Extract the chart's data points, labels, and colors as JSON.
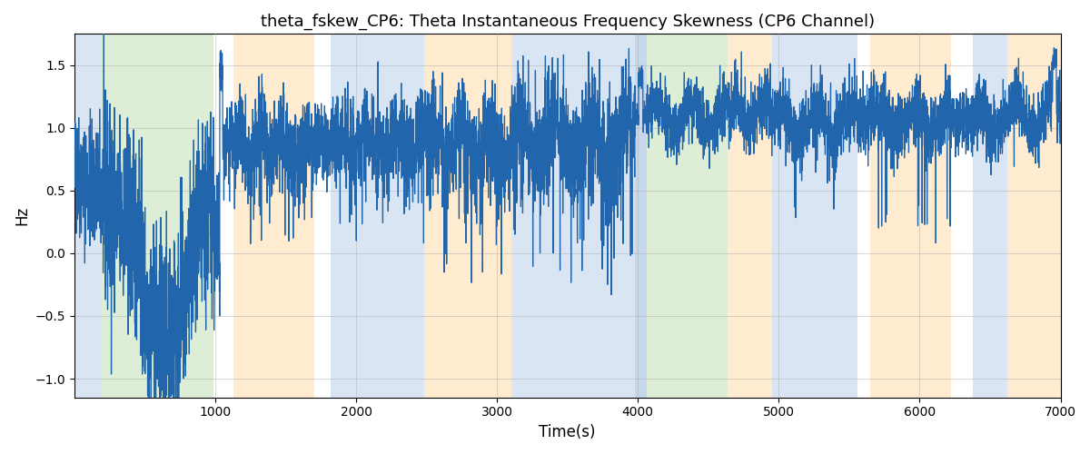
{
  "title": "theta_fskew_CP6: Theta Instantaneous Frequency Skewness (CP6 Channel)",
  "xlabel": "Time(s)",
  "ylabel": "Hz",
  "xlim": [
    0,
    7000
  ],
  "ylim": [
    -1.15,
    1.75
  ],
  "yticks": [
    -1.0,
    -0.5,
    0.0,
    0.5,
    1.0,
    1.5
  ],
  "xticks": [
    1000,
    2000,
    3000,
    4000,
    5000,
    6000,
    7000
  ],
  "line_color": "#2166ac",
  "line_width": 0.9,
  "background_color": "#ffffff",
  "grid_color": "#b0b0b0",
  "figsize": [
    12,
    5
  ],
  "dpi": 100,
  "bands": [
    {
      "start": 0,
      "end": 195,
      "color": "#aec6e8",
      "alpha": 0.45
    },
    {
      "start": 195,
      "end": 990,
      "color": "#b5d9a5",
      "alpha": 0.45
    },
    {
      "start": 1130,
      "end": 1700,
      "color": "#ffd9a0",
      "alpha": 0.5
    },
    {
      "start": 1820,
      "end": 2480,
      "color": "#aec6e8",
      "alpha": 0.45
    },
    {
      "start": 2480,
      "end": 3100,
      "color": "#ffd9a0",
      "alpha": 0.5
    },
    {
      "start": 3100,
      "end": 3980,
      "color": "#aec6e8",
      "alpha": 0.45
    },
    {
      "start": 3980,
      "end": 4060,
      "color": "#aec6e8",
      "alpha": 0.7
    },
    {
      "start": 4060,
      "end": 4640,
      "color": "#b5d9a5",
      "alpha": 0.45
    },
    {
      "start": 4640,
      "end": 4950,
      "color": "#ffd9a0",
      "alpha": 0.5
    },
    {
      "start": 4950,
      "end": 5560,
      "color": "#aec6e8",
      "alpha": 0.45
    },
    {
      "start": 5650,
      "end": 6220,
      "color": "#ffd9a0",
      "alpha": 0.5
    },
    {
      "start": 6380,
      "end": 6620,
      "color": "#aec6e8",
      "alpha": 0.45
    },
    {
      "start": 6620,
      "end": 7000,
      "color": "#ffd9a0",
      "alpha": 0.5
    }
  ],
  "seed": 42,
  "n_points": 7000
}
